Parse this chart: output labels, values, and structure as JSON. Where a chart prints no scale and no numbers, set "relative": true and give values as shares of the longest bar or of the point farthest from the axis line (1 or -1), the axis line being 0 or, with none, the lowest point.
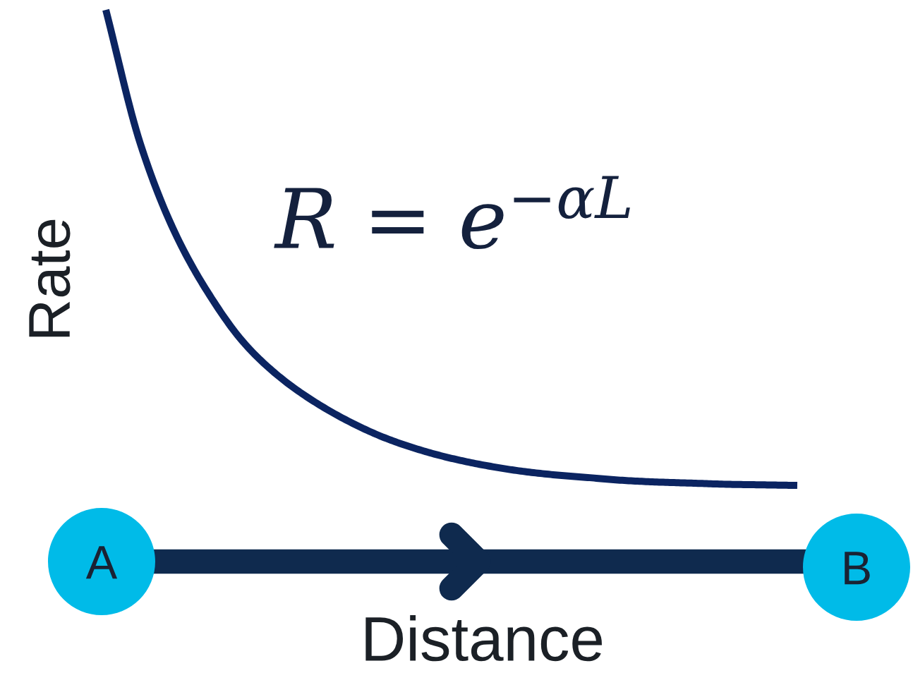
{
  "chart_data": {
    "type": "line",
    "relative": true,
    "xlabel": "Distance",
    "ylabel": "Rate",
    "annotations": [
      "R = e$^{−αL}$",
      "A",
      "B"
    ],
    "categories": [
      null,
      null,
      null,
      null,
      null,
      null,
      null,
      null,
      null,
      null,
      null,
      null,
      null,
      null,
      null,
      null,
      null,
      null,
      null,
      null,
      null
    ],
    "series": [
      {
        "color": "#0b2461",
        "values": [
          1,
          0.757,
          0.596,
          0.483,
          0.396,
          0.336,
          0.291,
          0.255,
          0.226,
          0.204,
          0.187,
          0.174,
          0.164,
          0.157,
          0.152,
          0.147,
          0.144,
          0.142,
          0.14,
          0.139,
          0.138
        ]
      }
    ],
    "line_style": "solid",
    "marker": "none"
  }
}
